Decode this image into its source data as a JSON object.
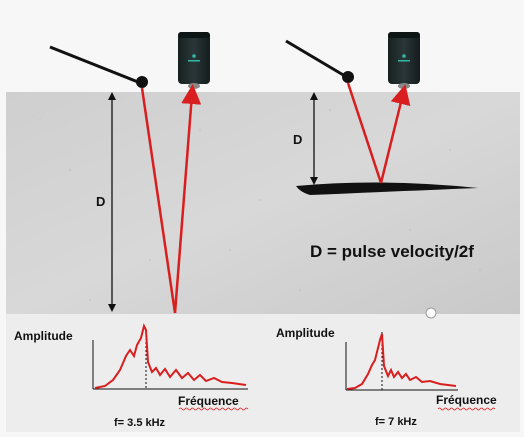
{
  "diagram": {
    "left_depth_label": "D",
    "right_depth_label": "D",
    "formula": "D = pulse velocity/2f"
  },
  "spectrum_left": {
    "ylabel": "Amplitude",
    "xlabel": "Fréquence",
    "caption": "f= 3.5 kHz"
  },
  "spectrum_right": {
    "ylabel": "Amplitude",
    "xlabel": "Fréquence",
    "caption": "f= 7 kHz"
  },
  "colors": {
    "wave": "#d81e1e",
    "concrete": "#d2d2d2",
    "background": "#f7f7f7",
    "sensor": "#1e2a2e",
    "sensor_logo": "#2fb8a6"
  }
}
